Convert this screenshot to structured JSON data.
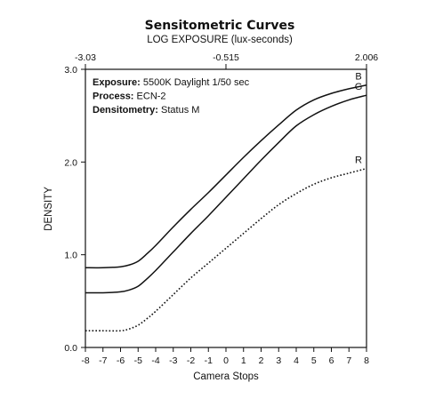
{
  "chart_data": {
    "type": "line",
    "title": "Sensitometric Curves",
    "subtitle": "LOG EXPOSURE (lux-seconds)",
    "xlabel": "Camera Stops",
    "ylabel": "DENSITY",
    "xlim": [
      -8,
      8
    ],
    "ylim": [
      0,
      3
    ],
    "x_ticks": [
      -8,
      -7,
      -6,
      -5,
      -4,
      -3,
      -2,
      -1,
      0,
      1,
      2,
      3,
      4,
      5,
      6,
      7,
      8
    ],
    "x_tick_labels": [
      "-8",
      "-7",
      "-6",
      "-5",
      "-4",
      "-3",
      "-2",
      "-1",
      "0",
      "1",
      "2",
      "3",
      "4",
      "5",
      "6",
      "7",
      "8"
    ],
    "y_ticks": [
      0,
      1,
      2,
      3
    ],
    "y_tick_labels": [
      "0.0",
      "1.0",
      "2.0",
      "3.0"
    ],
    "top_axis_ticks": [
      {
        "stop": -8,
        "label": "-3.03"
      },
      {
        "stop": 0,
        "label": "-0.515"
      },
      {
        "stop": 8,
        "label": "2.006"
      }
    ],
    "annotations": [
      {
        "bold": "Exposure:",
        "text": " 5500K Daylight 1/50 sec"
      },
      {
        "bold": "Process:",
        "text": " ECN-2"
      },
      {
        "bold": "Densitometry:",
        "text": " Status M"
      }
    ],
    "grid": false,
    "x": [
      -8,
      -7,
      -6,
      -5.5,
      -5,
      -4.5,
      -4,
      -3,
      -2,
      -1,
      0,
      1,
      2,
      3,
      4,
      5,
      6,
      7,
      8
    ],
    "series": [
      {
        "name": "B",
        "style": "solid",
        "color": "#111111",
        "values": [
          0.86,
          0.86,
          0.87,
          0.89,
          0.93,
          1.01,
          1.1,
          1.3,
          1.49,
          1.67,
          1.86,
          2.05,
          2.23,
          2.4,
          2.56,
          2.67,
          2.74,
          2.79,
          2.83
        ]
      },
      {
        "name": "G",
        "style": "solid",
        "color": "#111111",
        "values": [
          0.59,
          0.59,
          0.6,
          0.62,
          0.66,
          0.74,
          0.83,
          1.03,
          1.23,
          1.42,
          1.62,
          1.82,
          2.02,
          2.21,
          2.39,
          2.51,
          2.6,
          2.67,
          2.72
        ]
      },
      {
        "name": "R",
        "style": "dotted",
        "color": "#111111",
        "values": [
          0.18,
          0.18,
          0.18,
          0.2,
          0.24,
          0.31,
          0.39,
          0.57,
          0.75,
          0.91,
          1.07,
          1.23,
          1.39,
          1.54,
          1.66,
          1.76,
          1.83,
          1.88,
          1.93
        ]
      }
    ]
  }
}
